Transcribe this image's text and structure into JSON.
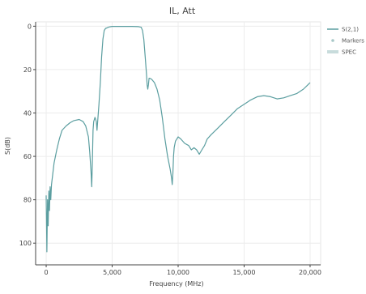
{
  "chart_data": {
    "type": "line",
    "title": "IL, Att",
    "xlabel": "Frequency (MHz)",
    "ylabel": "S(dB)",
    "xlim": [
      -800,
      20800
    ],
    "ylim": [
      110,
      -2
    ],
    "y_reversed": true,
    "grid": true,
    "legend_position": "right",
    "x_ticks": [
      0,
      5000,
      10000,
      15000,
      20000
    ],
    "x_tick_labels": [
      "0",
      "5,000",
      "10,000",
      "15,000",
      "20,000"
    ],
    "y_ticks": [
      0,
      20,
      40,
      60,
      80,
      100
    ],
    "y_tick_labels": [
      "0",
      "20",
      "40",
      "60",
      "80",
      "100"
    ],
    "legend": [
      {
        "label": "S(2,1)",
        "color": "#5b9ea0",
        "style": "line"
      },
      {
        "label": "Markers",
        "color": "#a8c8c8",
        "style": "marker"
      },
      {
        "label": "SPEC",
        "color": "#c8dcdc",
        "style": "band"
      }
    ],
    "series": [
      {
        "name": "S(2,1)",
        "color": "#5b9ea0",
        "x": [
          0,
          50,
          100,
          150,
          200,
          250,
          300,
          350,
          400,
          500,
          600,
          800,
          1000,
          1200,
          1500,
          1800,
          2100,
          2500,
          2800,
          3000,
          3200,
          3300,
          3400,
          3450,
          3500,
          3550,
          3600,
          3700,
          3800,
          3850,
          3900,
          4000,
          4100,
          4200,
          4300,
          4400,
          4500,
          4600,
          4700,
          4800,
          4900,
          5000,
          5500,
          6000,
          6500,
          7000,
          7200,
          7300,
          7400,
          7500,
          7600,
          7650,
          7700,
          7750,
          7800,
          7850,
          8000,
          8200,
          8400,
          8600,
          8800,
          9000,
          9200,
          9400,
          9500,
          9550,
          9600,
          9650,
          9700,
          9800,
          9900,
          10000,
          10200,
          10500,
          10800,
          11000,
          11200,
          11400,
          11600,
          11800,
          12000,
          12200,
          12500,
          13000,
          13500,
          14000,
          14500,
          15000,
          15500,
          16000,
          16500,
          17000,
          17500,
          18000,
          18500,
          19000,
          19500,
          20000
        ],
        "y": [
          78,
          104,
          80,
          92,
          76,
          85,
          74,
          80,
          73,
          68,
          63,
          57,
          52,
          48,
          46,
          44.5,
          43.5,
          43,
          44,
          46,
          51,
          58,
          67,
          74,
          62,
          48,
          44,
          42,
          44,
          48,
          44,
          36,
          26,
          14,
          6,
          2,
          1,
          0.8,
          0.5,
          0.3,
          0.2,
          0.1,
          0.1,
          0.1,
          0.1,
          0.2,
          0.5,
          2,
          6,
          14,
          22,
          27,
          29,
          27,
          24,
          24,
          24.5,
          26,
          29,
          34,
          42,
          52,
          60,
          66,
          70,
          73,
          68,
          60,
          56,
          53,
          52,
          51,
          52,
          54,
          55,
          57,
          56,
          57,
          59,
          57,
          55,
          52,
          50,
          47,
          44,
          41,
          38,
          36,
          34,
          32.5,
          32,
          32.5,
          33.5,
          33,
          32,
          31,
          29,
          26
        ]
      }
    ]
  }
}
